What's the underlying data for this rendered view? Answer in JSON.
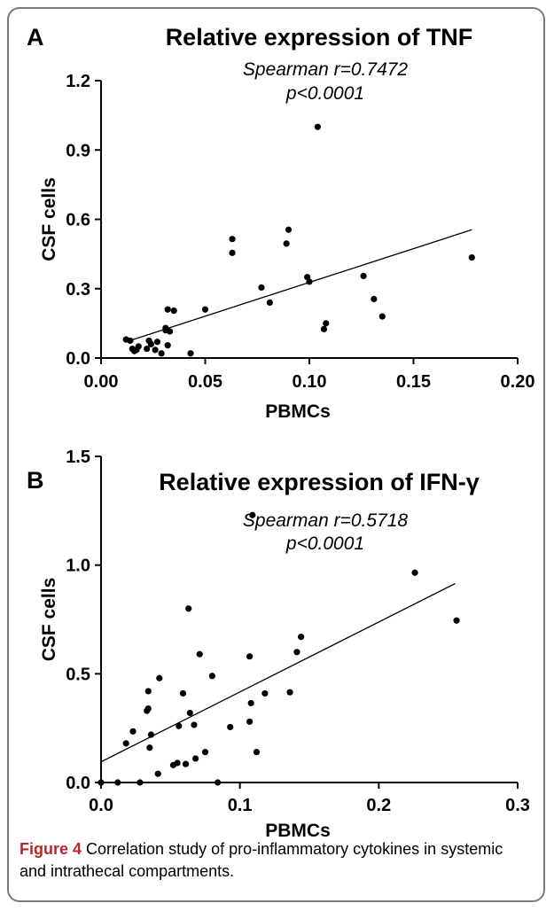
{
  "caption": {
    "label": "Figure 4",
    "text": "Correlation study of pro-inflammatory cytokines in systemic and intrathecal compartments."
  },
  "chart_data": [
    {
      "type": "scatter",
      "panel": "A",
      "title": "Relative expression of TNF",
      "stat_line1": "Spearman r=0.7472",
      "stat_line2": "p<0.0001",
      "xlabel": "PBMCs",
      "ylabel": "CSF cells",
      "xlim": [
        0,
        0.2
      ],
      "ylim": [
        0,
        1.2
      ],
      "xticks": [
        0.0,
        0.05,
        0.1,
        0.15,
        0.2
      ],
      "xtick_labels": [
        "0.00",
        "0.05",
        "0.10",
        "0.15",
        "0.20"
      ],
      "yticks": [
        0.0,
        0.3,
        0.6,
        0.9,
        1.2
      ],
      "ytick_labels": [
        "0.0",
        "0.3",
        "0.6",
        "0.9",
        "1.2"
      ],
      "regression_line": [
        [
          0.012,
          0.07
        ],
        [
          0.178,
          0.555
        ]
      ],
      "points": [
        [
          0.012,
          0.08
        ],
        [
          0.014,
          0.075
        ],
        [
          0.015,
          0.04
        ],
        [
          0.016,
          0.03
        ],
        [
          0.017,
          0.035
        ],
        [
          0.018,
          0.05
        ],
        [
          0.022,
          0.04
        ],
        [
          0.023,
          0.075
        ],
        [
          0.024,
          0.06
        ],
        [
          0.026,
          0.035
        ],
        [
          0.027,
          0.07
        ],
        [
          0.029,
          0.02
        ],
        [
          0.031,
          0.12
        ],
        [
          0.031,
          0.13
        ],
        [
          0.032,
          0.21
        ],
        [
          0.032,
          0.055
        ],
        [
          0.033,
          0.115
        ],
        [
          0.035,
          0.205
        ],
        [
          0.043,
          0.02
        ],
        [
          0.05,
          0.21
        ],
        [
          0.063,
          0.515
        ],
        [
          0.063,
          0.455
        ],
        [
          0.077,
          0.305
        ],
        [
          0.081,
          0.24
        ],
        [
          0.089,
          0.495
        ],
        [
          0.09,
          0.555
        ],
        [
          0.099,
          0.35
        ],
        [
          0.1,
          0.33
        ],
        [
          0.104,
          1.0
        ],
        [
          0.107,
          0.125
        ],
        [
          0.108,
          0.15
        ],
        [
          0.126,
          0.355
        ],
        [
          0.131,
          0.255
        ],
        [
          0.135,
          0.18
        ],
        [
          0.178,
          0.435
        ]
      ]
    },
    {
      "type": "scatter",
      "panel": "B",
      "title": "Relative expression of IFN-γ",
      "stat_line1": "Spearman r=0.5718",
      "stat_line2": "p<0.0001",
      "xlabel": "PBMCs",
      "ylabel": "CSF cells",
      "xlim": [
        0,
        0.3
      ],
      "ylim": [
        0,
        1.5
      ],
      "xticks": [
        0.0,
        0.1,
        0.2,
        0.3
      ],
      "xtick_labels": [
        "0.0",
        "0.1",
        "0.2",
        "0.3"
      ],
      "yticks": [
        0.0,
        0.5,
        1.0,
        1.5
      ],
      "ytick_labels": [
        "0.0",
        "0.5",
        "1.0",
        "1.5"
      ],
      "regression_line": [
        [
          0.0,
          0.095
        ],
        [
          0.255,
          0.915
        ]
      ],
      "points": [
        [
          0.0,
          0.0
        ],
        [
          0.012,
          0.0
        ],
        [
          0.018,
          0.18
        ],
        [
          0.023,
          0.235
        ],
        [
          0.028,
          0.0
        ],
        [
          0.033,
          0.33
        ],
        [
          0.034,
          0.34
        ],
        [
          0.034,
          0.42
        ],
        [
          0.035,
          0.16
        ],
        [
          0.036,
          0.22
        ],
        [
          0.041,
          0.04
        ],
        [
          0.042,
          0.48
        ],
        [
          0.052,
          0.08
        ],
        [
          0.055,
          0.09
        ],
        [
          0.056,
          0.26
        ],
        [
          0.059,
          0.41
        ],
        [
          0.061,
          0.085
        ],
        [
          0.063,
          0.8
        ],
        [
          0.064,
          0.32
        ],
        [
          0.067,
          0.265
        ],
        [
          0.068,
          0.11
        ],
        [
          0.071,
          0.59
        ],
        [
          0.075,
          0.14
        ],
        [
          0.08,
          0.49
        ],
        [
          0.084,
          0.0
        ],
        [
          0.093,
          0.255
        ],
        [
          0.107,
          0.58
        ],
        [
          0.107,
          0.28
        ],
        [
          0.108,
          0.365
        ],
        [
          0.109,
          1.23
        ],
        [
          0.112,
          0.14
        ],
        [
          0.118,
          0.41
        ],
        [
          0.136,
          0.415
        ],
        [
          0.141,
          0.6
        ],
        [
          0.144,
          0.67
        ],
        [
          0.226,
          0.965
        ],
        [
          0.256,
          0.745
        ]
      ]
    }
  ]
}
